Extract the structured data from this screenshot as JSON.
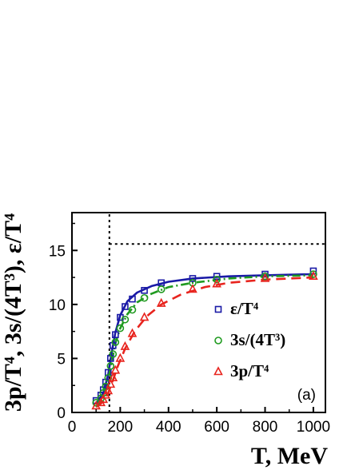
{
  "chart_data": {
    "type": "scatter",
    "xlabel": "T, MeV",
    "ylabel": "3p/T⁴,  3s/(4T³),  ε/T⁴",
    "xlim": [
      0,
      1050
    ],
    "ylim": [
      0,
      18.5
    ],
    "x_ticks": [
      0,
      200,
      400,
      600,
      800,
      1000
    ],
    "y_ticks": [
      0,
      5,
      10,
      15
    ],
    "panel_label": "(a)",
    "legend_position": "right",
    "reference_lines": {
      "vertical_x": 155,
      "horizontal_y": 15.6
    },
    "series": [
      {
        "name": "ε/T⁴",
        "marker": "square",
        "line_style": "solid",
        "color": "#1a1aa6",
        "points": [
          {
            "x": 100,
            "y": 1.1
          },
          {
            "x": 120,
            "y": 1.6
          },
          {
            "x": 130,
            "y": 2.1
          },
          {
            "x": 140,
            "y": 2.8
          },
          {
            "x": 150,
            "y": 3.7
          },
          {
            "x": 160,
            "y": 5.0
          },
          {
            "x": 170,
            "y": 6.2
          },
          {
            "x": 180,
            "y": 7.2
          },
          {
            "x": 200,
            "y": 8.8
          },
          {
            "x": 220,
            "y": 9.8
          },
          {
            "x": 250,
            "y": 10.5
          },
          {
            "x": 300,
            "y": 11.3
          },
          {
            "x": 370,
            "y": 12.0
          },
          {
            "x": 500,
            "y": 12.4
          },
          {
            "x": 600,
            "y": 12.6
          },
          {
            "x": 800,
            "y": 12.8
          },
          {
            "x": 1000,
            "y": 13.1
          }
        ],
        "curve": [
          {
            "x": 100,
            "y": 0.8
          },
          {
            "x": 130,
            "y": 1.8
          },
          {
            "x": 150,
            "y": 3.5
          },
          {
            "x": 165,
            "y": 5.6
          },
          {
            "x": 180,
            "y": 7.4
          },
          {
            "x": 200,
            "y": 9.0
          },
          {
            "x": 230,
            "y": 10.3
          },
          {
            "x": 270,
            "y": 11.1
          },
          {
            "x": 330,
            "y": 11.7
          },
          {
            "x": 400,
            "y": 12.1
          },
          {
            "x": 500,
            "y": 12.4
          },
          {
            "x": 650,
            "y": 12.6
          },
          {
            "x": 800,
            "y": 12.7
          },
          {
            "x": 1000,
            "y": 12.8
          }
        ]
      },
      {
        "name": "3s/(4T³)",
        "marker": "circle",
        "line_style": "dash-dot",
        "color": "#1f9a1f",
        "points": [
          {
            "x": 100,
            "y": 0.9
          },
          {
            "x": 120,
            "y": 1.3
          },
          {
            "x": 130,
            "y": 1.8
          },
          {
            "x": 140,
            "y": 2.4
          },
          {
            "x": 150,
            "y": 3.2
          },
          {
            "x": 160,
            "y": 4.3
          },
          {
            "x": 170,
            "y": 5.4
          },
          {
            "x": 180,
            "y": 6.5
          },
          {
            "x": 200,
            "y": 7.8
          },
          {
            "x": 220,
            "y": 8.6
          },
          {
            "x": 250,
            "y": 9.5
          },
          {
            "x": 300,
            "y": 10.6
          },
          {
            "x": 370,
            "y": 11.4
          },
          {
            "x": 500,
            "y": 12.0
          },
          {
            "x": 600,
            "y": 12.3
          },
          {
            "x": 800,
            "y": 12.6
          },
          {
            "x": 1000,
            "y": 12.8
          }
        ],
        "curve": [
          {
            "x": 100,
            "y": 0.7
          },
          {
            "x": 130,
            "y": 1.6
          },
          {
            "x": 150,
            "y": 3.0
          },
          {
            "x": 165,
            "y": 4.7
          },
          {
            "x": 180,
            "y": 6.4
          },
          {
            "x": 200,
            "y": 7.8
          },
          {
            "x": 230,
            "y": 9.1
          },
          {
            "x": 270,
            "y": 10.2
          },
          {
            "x": 330,
            "y": 11.0
          },
          {
            "x": 400,
            "y": 11.6
          },
          {
            "x": 500,
            "y": 12.0
          },
          {
            "x": 650,
            "y": 12.4
          },
          {
            "x": 800,
            "y": 12.6
          },
          {
            "x": 1000,
            "y": 12.7
          }
        ]
      },
      {
        "name": "3p/T⁴",
        "marker": "triangle",
        "line_style": "dashed",
        "color": "#e8241e",
        "points": [
          {
            "x": 100,
            "y": 0.6
          },
          {
            "x": 120,
            "y": 0.9
          },
          {
            "x": 130,
            "y": 1.2
          },
          {
            "x": 140,
            "y": 1.6
          },
          {
            "x": 150,
            "y": 2.0
          },
          {
            "x": 160,
            "y": 2.6
          },
          {
            "x": 170,
            "y": 3.2
          },
          {
            "x": 180,
            "y": 3.9
          },
          {
            "x": 200,
            "y": 5.0
          },
          {
            "x": 220,
            "y": 6.1
          },
          {
            "x": 250,
            "y": 7.3
          },
          {
            "x": 300,
            "y": 8.8
          },
          {
            "x": 370,
            "y": 10.1
          },
          {
            "x": 500,
            "y": 11.4
          },
          {
            "x": 600,
            "y": 11.9
          },
          {
            "x": 800,
            "y": 12.4
          },
          {
            "x": 1000,
            "y": 12.6
          }
        ],
        "curve": [
          {
            "x": 100,
            "y": 0.5
          },
          {
            "x": 130,
            "y": 1.0
          },
          {
            "x": 150,
            "y": 1.8
          },
          {
            "x": 170,
            "y": 3.0
          },
          {
            "x": 190,
            "y": 4.3
          },
          {
            "x": 220,
            "y": 5.9
          },
          {
            "x": 260,
            "y": 7.5
          },
          {
            "x": 310,
            "y": 8.9
          },
          {
            "x": 370,
            "y": 10.0
          },
          {
            "x": 450,
            "y": 10.9
          },
          {
            "x": 550,
            "y": 11.6
          },
          {
            "x": 650,
            "y": 12.0
          },
          {
            "x": 800,
            "y": 12.3
          },
          {
            "x": 1000,
            "y": 12.5
          }
        ]
      }
    ]
  }
}
